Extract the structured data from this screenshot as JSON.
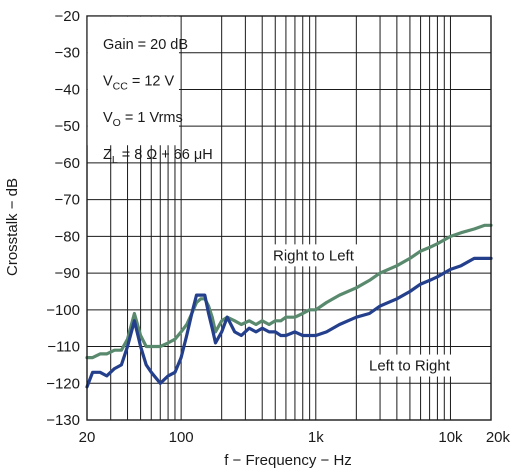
{
  "chart_data": {
    "type": "line",
    "xlabel": "f − Frequency − Hz",
    "ylabel": "Crosstalk − dB",
    "x_scale": "log",
    "xlim": [
      20,
      20000
    ],
    "ylim": [
      -130,
      -20
    ],
    "x_ticks": [
      {
        "value": 20,
        "label": "20"
      },
      {
        "value": 100,
        "label": "100"
      },
      {
        "value": 1000,
        "label": "1k"
      },
      {
        "value": 10000,
        "label": "10k"
      },
      {
        "value": 20000,
        "label": "20k"
      }
    ],
    "y_ticks": [
      -20,
      -30,
      -40,
      -50,
      -60,
      -70,
      -80,
      -90,
      -100,
      -110,
      -120,
      -130
    ],
    "grid": true,
    "conditions": [
      {
        "text": "Gain = 20 dB"
      },
      {
        "main": "V",
        "sub": "CC",
        "rest": " = 12 V"
      },
      {
        "main": "V",
        "sub": "O",
        "rest": " = 1 Vrms"
      },
      {
        "main": "Z",
        "sub": "L",
        "rest": " = 8 Ω + 66 μH"
      }
    ],
    "series": [
      {
        "name": "Right to Left",
        "color": "#5a8a6e",
        "x": [
          20,
          22,
          25,
          28,
          32,
          36,
          40,
          45,
          50,
          55,
          60,
          70,
          80,
          90,
          100,
          110,
          120,
          130,
          140,
          150,
          160,
          170,
          180,
          200,
          220,
          250,
          280,
          320,
          360,
          400,
          450,
          500,
          550,
          600,
          700,
          800,
          900,
          1000,
          1200,
          1500,
          2000,
          2500,
          3000,
          4000,
          5000,
          6000,
          7000,
          8000,
          10000,
          12000,
          15000,
          18000,
          20000
        ],
        "y": [
          -113,
          -113,
          -112,
          -112,
          -111,
          -111,
          -108,
          -101,
          -107,
          -110,
          -110,
          -110,
          -109,
          -108,
          -106,
          -104,
          -101,
          -98,
          -97,
          -97,
          -99,
          -102,
          -106,
          -103,
          -102,
          -103,
          -104,
          -103,
          -104,
          -103,
          -104,
          -103,
          -103,
          -102,
          -102,
          -101,
          -100,
          -100,
          -98,
          -96,
          -94,
          -92,
          -90,
          -88,
          -86,
          -84,
          -83,
          -82,
          -80,
          -79,
          -78,
          -77,
          -77
        ]
      },
      {
        "name": "Left to Right",
        "color": "#243f8c",
        "x": [
          20,
          22,
          25,
          28,
          32,
          36,
          40,
          45,
          50,
          55,
          60,
          70,
          80,
          90,
          100,
          110,
          120,
          130,
          140,
          150,
          160,
          170,
          180,
          200,
          220,
          250,
          280,
          320,
          360,
          400,
          450,
          500,
          550,
          600,
          700,
          800,
          900,
          1000,
          1200,
          1500,
          2000,
          2500,
          3000,
          4000,
          5000,
          6000,
          7000,
          8000,
          10000,
          12000,
          15000,
          18000,
          20000
        ],
        "y": [
          -121,
          -117,
          -117,
          -118,
          -116,
          -115,
          -110,
          -103,
          -110,
          -115,
          -117,
          -120,
          -118,
          -117,
          -113,
          -107,
          -101,
          -96,
          -96,
          -96,
          -101,
          -105,
          -109,
          -106,
          -102,
          -106,
          -107,
          -105,
          -106,
          -105,
          -106,
          -106,
          -107,
          -107,
          -106,
          -107,
          -107,
          -107,
          -106,
          -104,
          -102,
          -101,
          -99,
          -97,
          -95,
          -93,
          -92,
          -91,
          -89,
          -88,
          -86,
          -86,
          -86
        ]
      }
    ],
    "annotations": [
      "Right to Left",
      "Left to Right"
    ]
  }
}
